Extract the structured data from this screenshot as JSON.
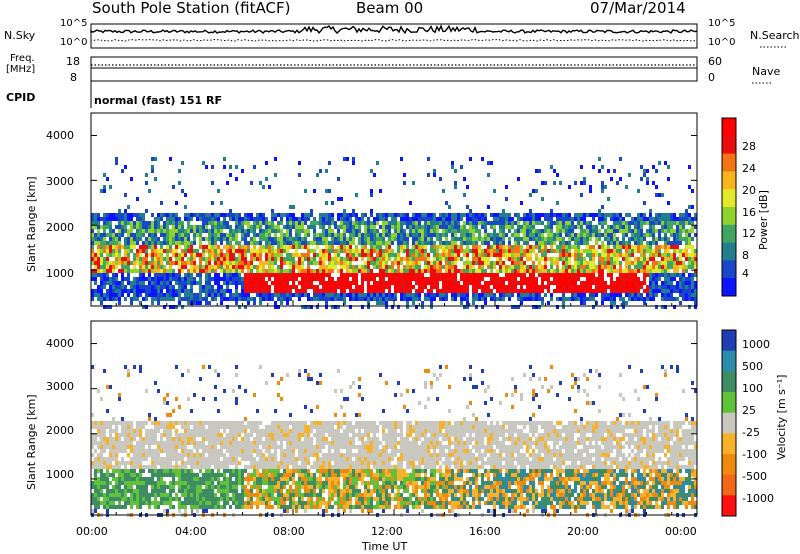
{
  "header": {
    "title": "South Pole Station (fitACF)",
    "beam": "Beam 00",
    "date": "07/Mar/2014"
  },
  "top_panels": {
    "nsky_label": "N.Sky",
    "nsearch_label": "N.Search",
    "nsky_ticks": [
      "10^5",
      "10^0"
    ],
    "nsearch_ticks": [
      "10^5",
      "10^0"
    ],
    "freq_label": "Freq.",
    "freq_unit": "[MHz]",
    "freq_ticks": [
      "18",
      "8"
    ],
    "nave_label": "Nave",
    "nave_ticks": [
      "60",
      "0"
    ],
    "cpid_label": "CPID",
    "cpid_text": "normal (fast) 151 RF"
  },
  "chart_data": [
    {
      "type": "heatmap",
      "name": "power",
      "ylabel": "Slant Range [km]",
      "ylim": [
        200,
        4500
      ],
      "yticks": [
        "1000",
        "2000",
        "3000",
        "4000"
      ],
      "xlim": [
        "00:00",
        "24:00"
      ],
      "colorbar": {
        "label": "Power [dB]",
        "ticks": [
          "4",
          "8",
          "12",
          "16",
          "20",
          "24",
          "28"
        ],
        "colors": [
          "#0a14ff",
          "#1a46c8",
          "#227e8e",
          "#3fa560",
          "#8fd22d",
          "#e3e82a",
          "#f8b51c",
          "#f37414",
          "#ea0f0e",
          "#ff0000"
        ]
      },
      "features": [
        {
          "time_h": [
            6,
            22
          ],
          "range_km": [
            500,
            1100
          ],
          "level_db": 28
        },
        {
          "time_h": [
            0,
            24
          ],
          "range_km": [
            1000,
            2100
          ],
          "level_db": 12
        },
        {
          "time_h": [
            0,
            24
          ],
          "range_km": [
            1800,
            2200
          ],
          "level_db": 6
        }
      ]
    },
    {
      "type": "heatmap",
      "name": "velocity",
      "ylabel": "Slant Range [km]",
      "ylim": [
        200,
        4500
      ],
      "yticks": [
        "1000",
        "2000",
        "3000",
        "4000"
      ],
      "xlim": [
        "00:00",
        "24:00"
      ],
      "colorbar": {
        "label": "Velocity [m s⁻¹]",
        "ticks": [
          "1000",
          "500",
          "100",
          "25",
          "-25",
          "-100",
          "-500",
          "-1000"
        ],
        "colors": [
          "#1f3eb4",
          "#2a8ca8",
          "#3d8c63",
          "#5fc23a",
          "#c8c8c0",
          "#f5b22a",
          "#ef8a10",
          "#f36818",
          "#ff1010"
        ]
      },
      "features": [
        {
          "time_h": [
            0,
            24
          ],
          "range_km": [
            1400,
            2300
          ],
          "velocity_mps": 0
        },
        {
          "time_h": [
            6,
            14
          ],
          "range_km": [
            500,
            1000
          ],
          "velocity_mps": -100
        },
        {
          "time_h": [
            14,
            24
          ],
          "range_km": [
            500,
            1100
          ],
          "velocity_mps": 300
        }
      ]
    }
  ],
  "x_axis": {
    "ticks": [
      "00:00",
      "04:00",
      "08:00",
      "12:00",
      "16:00",
      "20:00",
      "00:00"
    ],
    "label": "Time UT"
  },
  "colors": {
    "white_bg": "#ffffff",
    "gray_scatter": "#c8c8c0"
  }
}
